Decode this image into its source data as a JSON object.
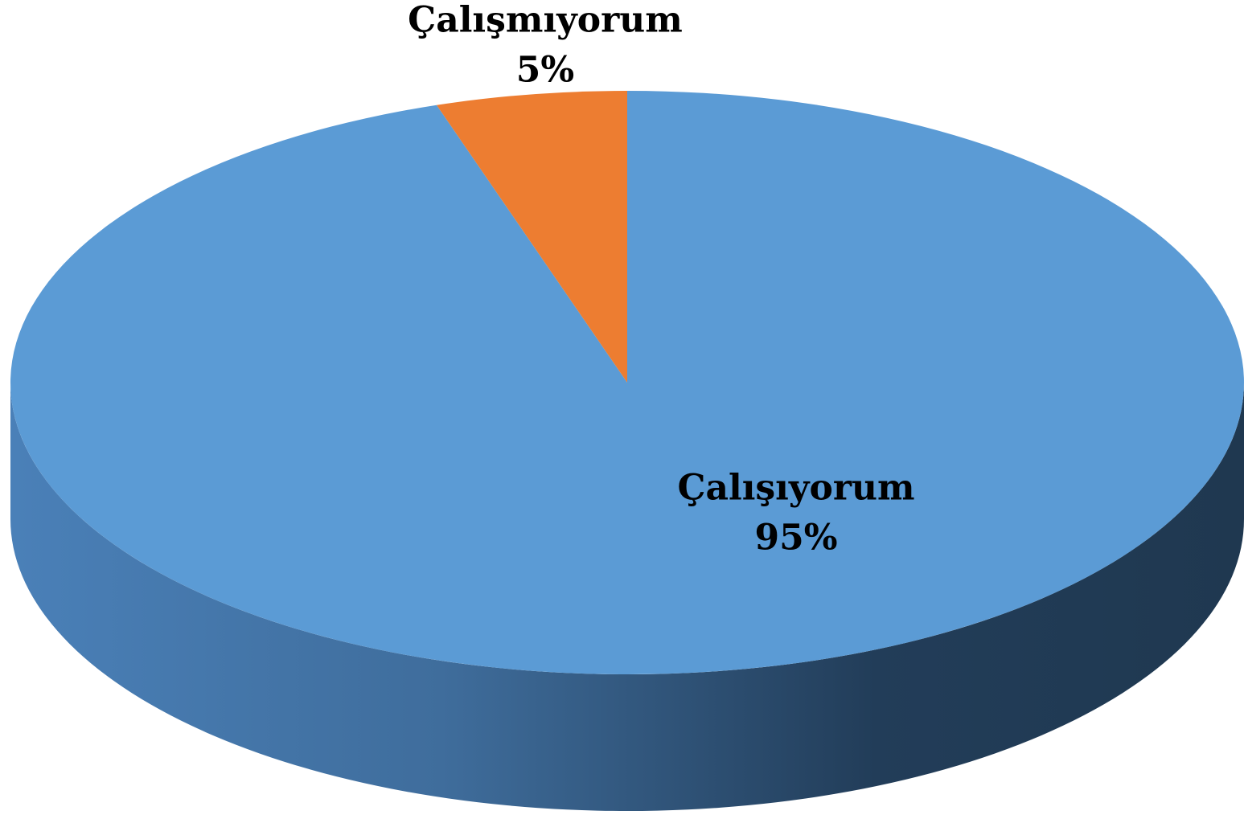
{
  "chart_data": {
    "type": "pie",
    "categories": [
      "Çalışıyorum",
      "Çalışmıyorum"
    ],
    "values": [
      95,
      5
    ],
    "value_labels": [
      "95%",
      "5%"
    ],
    "colors": [
      "#5b9bd5",
      "#ed7d31"
    ]
  }
}
